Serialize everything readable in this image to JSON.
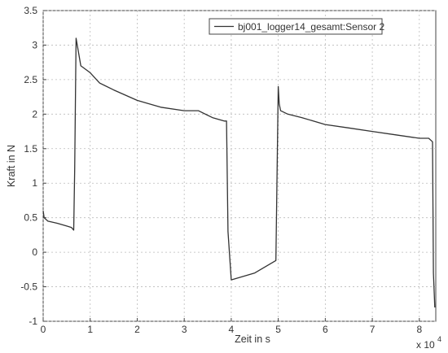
{
  "chart_data": {
    "type": "line",
    "xlabel": "Zeit in s",
    "ylabel": "Kraft in N",
    "x_multiplier_label": "x 10",
    "x_multiplier_exponent": "4",
    "xlim": [
      0,
      8.35
    ],
    "ylim": [
      -1,
      3.5
    ],
    "x_ticks": [
      0,
      1,
      2,
      3,
      4,
      5,
      6,
      7,
      8
    ],
    "x_tick_labels": [
      "0",
      "1",
      "2",
      "3",
      "4",
      "5",
      "6",
      "7",
      "8"
    ],
    "y_ticks": [
      -1,
      -0.5,
      0,
      0.5,
      1,
      1.5,
      2,
      2.5,
      3,
      3.5
    ],
    "y_tick_labels": [
      "-1",
      "-0.5",
      "0",
      "0.5",
      "1",
      "1.5",
      "2",
      "2.5",
      "3",
      "3.5"
    ],
    "grid": true,
    "legend_position": "top-right",
    "series": [
      {
        "name": "bj001_logger14_gesamt:Sensor 2",
        "color": "#333333",
        "x": [
          0,
          0.02,
          0.1,
          0.3,
          0.5,
          0.6,
          0.65,
          0.67,
          0.7,
          0.75,
          0.8,
          1.0,
          1.2,
          1.5,
          2.0,
          2.5,
          3.0,
          3.3,
          3.6,
          3.85,
          3.9,
          3.93,
          4.0,
          4.5,
          4.95,
          5.0,
          5.02,
          5.05,
          5.2,
          5.5,
          6.0,
          6.5,
          7.0,
          7.5,
          8.0,
          8.2,
          8.28,
          8.3,
          8.33
        ],
        "y": [
          0.6,
          0.5,
          0.45,
          0.42,
          0.38,
          0.36,
          0.32,
          1.2,
          3.1,
          2.9,
          2.7,
          2.6,
          2.45,
          2.35,
          2.2,
          2.1,
          2.05,
          2.05,
          1.95,
          1.9,
          1.9,
          0.3,
          -0.4,
          -0.3,
          -0.12,
          2.4,
          2.15,
          2.05,
          2.0,
          1.95,
          1.85,
          1.8,
          1.75,
          1.7,
          1.65,
          1.65,
          1.6,
          -0.3,
          -0.8
        ]
      }
    ]
  }
}
